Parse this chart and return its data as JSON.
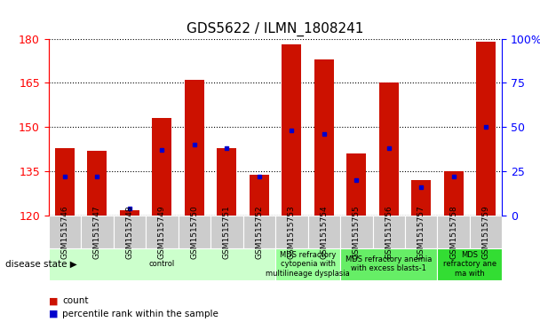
{
  "title": "GDS5622 / ILMN_1808241",
  "samples": [
    "GSM1515746",
    "GSM1515747",
    "GSM1515748",
    "GSM1515749",
    "GSM1515750",
    "GSM1515751",
    "GSM1515752",
    "GSM1515753",
    "GSM1515754",
    "GSM1515755",
    "GSM1515756",
    "GSM1515757",
    "GSM1515758",
    "GSM1515759"
  ],
  "counts": [
    143,
    142,
    122,
    153,
    166,
    143,
    134,
    178,
    173,
    141,
    165,
    132,
    135,
    179
  ],
  "percentile_ranks": [
    22,
    22,
    4,
    37,
    40,
    38,
    22,
    48,
    46,
    20,
    38,
    16,
    22,
    50
  ],
  "y_min": 120,
  "y_max": 180,
  "y_ticks": [
    120,
    135,
    150,
    165,
    180
  ],
  "y2_ticks": [
    0,
    25,
    50,
    75,
    100
  ],
  "bar_color": "#cc1100",
  "dot_color": "#0000cc",
  "tick_bg_color": "#cccccc",
  "disease_groups": [
    {
      "label": "control",
      "start": 0,
      "end": 7,
      "color": "#ccffcc"
    },
    {
      "label": "MDS refractory\ncytopenia with\nmultilineage dysplasia",
      "start": 7,
      "end": 9,
      "color": "#99ff99"
    },
    {
      "label": "MDS refractory anemia\nwith excess blasts-1",
      "start": 9,
      "end": 12,
      "color": "#66ee66"
    },
    {
      "label": "MDS\nrefractory ane\nma with",
      "start": 12,
      "end": 14,
      "color": "#33dd33"
    }
  ],
  "xlabel_disease_state": "disease state",
  "legend_count": "count",
  "legend_percentile": "percentile rank within the sample"
}
